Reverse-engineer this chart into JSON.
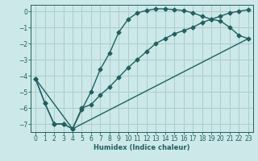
{
  "xlabel": "Humidex (Indice chaleur)",
  "background_color": "#cce8e8",
  "grid_color": "#aacece",
  "line_color": "#206060",
  "xlim": [
    -0.5,
    23.5
  ],
  "ylim": [
    -7.5,
    0.4
  ],
  "xticks": [
    0,
    1,
    2,
    3,
    4,
    5,
    6,
    7,
    8,
    9,
    10,
    11,
    12,
    13,
    14,
    15,
    16,
    17,
    18,
    19,
    20,
    21,
    22,
    23
  ],
  "yticks": [
    0,
    -1,
    -2,
    -3,
    -4,
    -5,
    -6,
    -7
  ],
  "line1_x": [
    0,
    1,
    2,
    3,
    4,
    5,
    6,
    7,
    8,
    9,
    10,
    11,
    12,
    13,
    14,
    15,
    16,
    17,
    18,
    19,
    20,
    21,
    22,
    23
  ],
  "line1_y": [
    -4.2,
    -5.7,
    -7.0,
    -7.0,
    -7.3,
    -6.1,
    -5.0,
    -3.6,
    -2.6,
    -1.3,
    -0.5,
    -0.1,
    0.05,
    0.15,
    0.15,
    0.1,
    0.05,
    -0.1,
    -0.3,
    -0.5,
    -0.6,
    -1.0,
    -1.5,
    -1.7
  ],
  "line2_x": [
    0,
    1,
    2,
    3,
    4,
    5,
    6,
    7,
    8,
    9,
    10,
    11,
    12,
    13,
    14,
    15,
    16,
    17,
    18,
    19,
    20,
    21,
    22,
    23
  ],
  "line2_y": [
    -4.2,
    -5.7,
    -7.0,
    -7.0,
    -7.3,
    -6.0,
    -5.8,
    -5.2,
    -4.7,
    -4.1,
    -3.5,
    -3.0,
    -2.5,
    -2.0,
    -1.7,
    -1.4,
    -1.2,
    -1.0,
    -0.7,
    -0.5,
    -0.3,
    -0.1,
    0.0,
    0.1
  ],
  "line3_x": [
    0,
    4,
    23
  ],
  "line3_y": [
    -4.2,
    -7.3,
    -1.7
  ]
}
